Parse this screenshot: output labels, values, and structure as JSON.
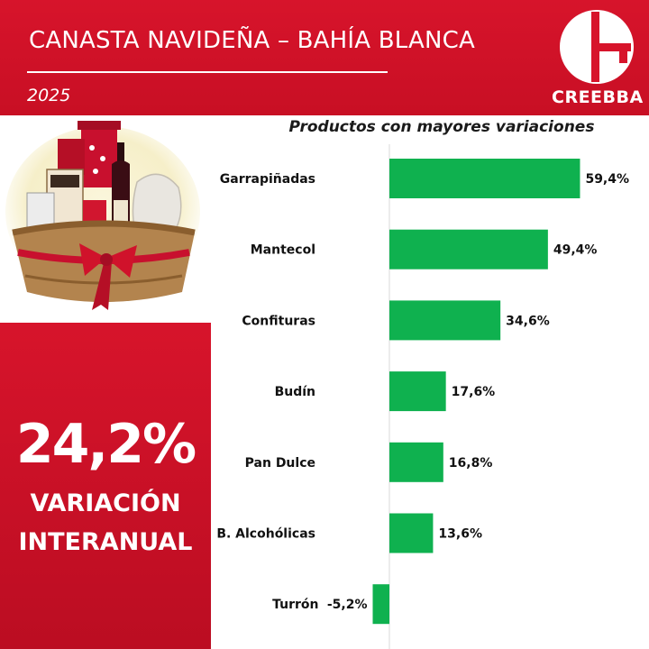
{
  "header": {
    "title": "CANASTA NAVIDEÑA – BAHÍA BLANCA",
    "year": "2025",
    "logo_text": "CREEBBA"
  },
  "kpi": {
    "value": "24,2%",
    "label_line1": "VARIACIÓN",
    "label_line2": "INTERANUAL"
  },
  "colors": {
    "brand_red": "#d7142b",
    "bar_green": "#0fb14f"
  },
  "chart_data": {
    "type": "bar",
    "orientation": "horizontal",
    "title": "Productos con mayores variaciones",
    "categories": [
      "Garrapiñadas",
      "Mantecol",
      "Confituras",
      "Budín",
      "Pan Dulce",
      "B. Alcohólicas",
      "Turrón"
    ],
    "values": [
      59.4,
      49.4,
      34.6,
      17.6,
      16.8,
      13.6,
      -5.2
    ],
    "value_labels": [
      "59,4%",
      "49,4%",
      "34,6%",
      "17,6%",
      "16,8%",
      "13,6%",
      "-5,2%"
    ],
    "xlim": [
      -5.2,
      59.4
    ],
    "grid": false,
    "legend": "none"
  }
}
